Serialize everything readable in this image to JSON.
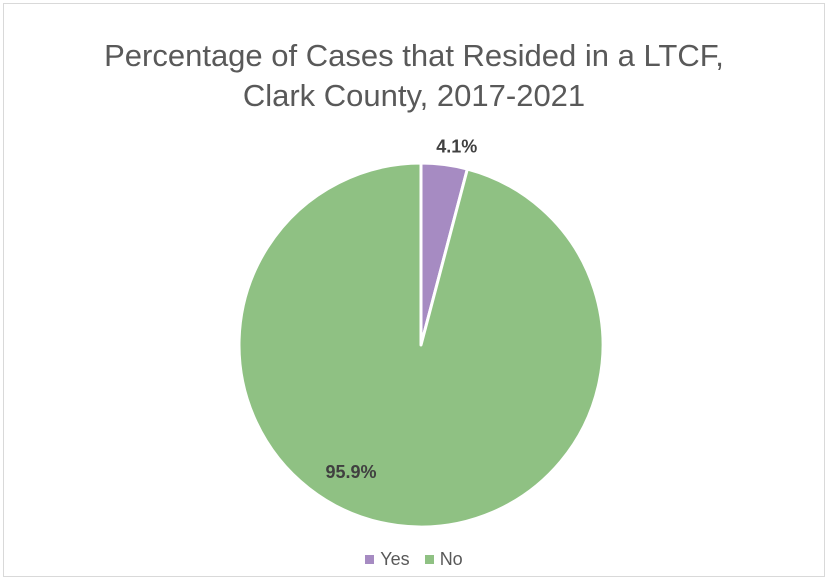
{
  "chart_data": {
    "type": "pie",
    "title": "Percentage of Cases that Resided in a LTCF, Clark County, 2017-2021",
    "title_lines": [
      "Percentage of Cases that Resided in a LTCF,",
      "Clark County, 2017-2021"
    ],
    "slices": [
      {
        "label": "Yes",
        "value": 4.1,
        "data_label": "4.1%",
        "color": "#a68bc2"
      },
      {
        "label": "No",
        "value": 95.9,
        "data_label": "95.9%",
        "color": "#8fc183"
      }
    ],
    "legend_position": "bottom"
  }
}
